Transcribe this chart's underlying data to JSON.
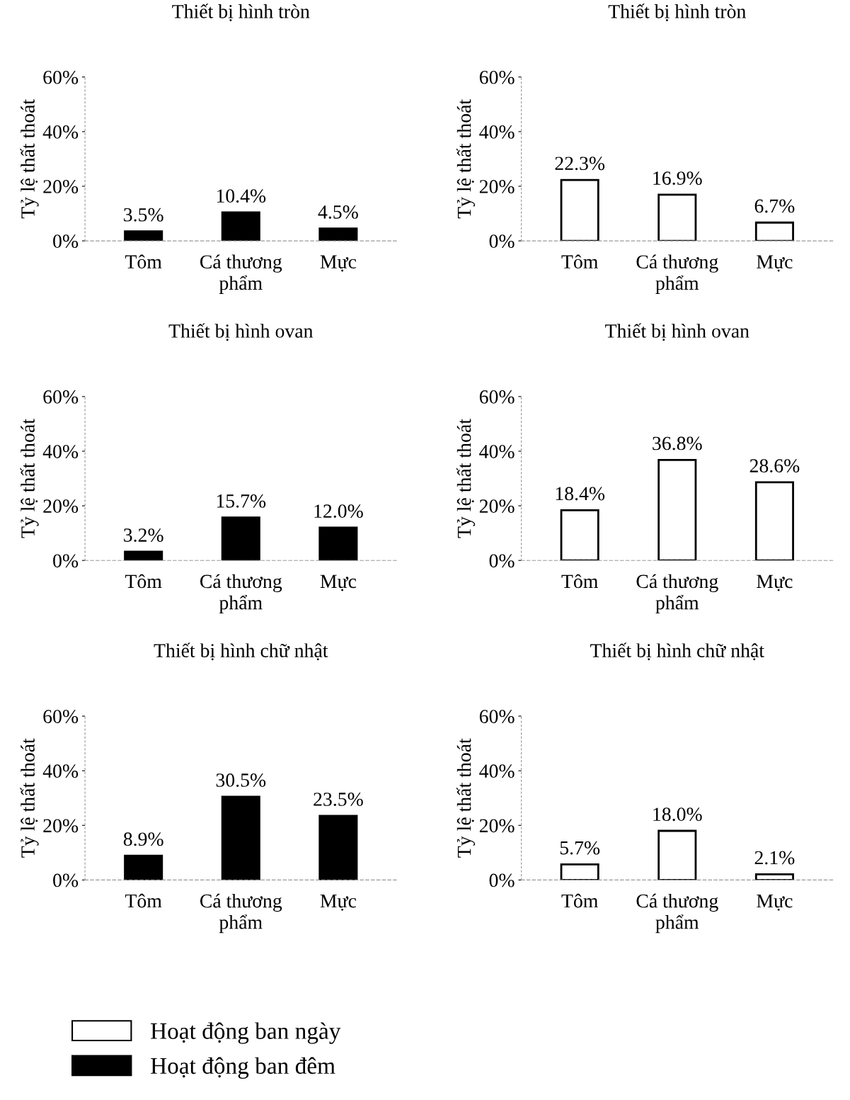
{
  "chart_data": [
    {
      "type": "bar",
      "title": "Thiết bị hình tròn",
      "ylabel": "Tỷ lệ thất thoát",
      "categories": [
        "Tôm",
        "Cá thương phẩm",
        "Mực"
      ],
      "series": [
        {
          "name": "Hoạt động ban đêm",
          "color": "#000000",
          "values": [
            3.5,
            10.4,
            4.5
          ],
          "value_labels": [
            "3.5%",
            "10.4%",
            "4.5%"
          ]
        }
      ],
      "ylim": [
        0,
        60
      ],
      "yticks": [
        {
          "value": 0,
          "label": "0%"
        },
        {
          "value": 20,
          "label": "20%"
        },
        {
          "value": 40,
          "label": "40%"
        },
        {
          "value": 60,
          "label": "60%"
        }
      ],
      "legend": "bottom"
    },
    {
      "type": "bar",
      "title": "Thiết bị hình tròn",
      "ylabel": "Tỷ lệ thất thoát",
      "categories": [
        "Tôm",
        "Cá thương phẩm",
        "Mực"
      ],
      "series": [
        {
          "name": "Hoạt động ban ngày",
          "color": "#ffffff",
          "values": [
            22.3,
            16.9,
            6.7
          ],
          "value_labels": [
            "22.3%",
            "16.9%",
            "6.7%"
          ]
        }
      ],
      "ylim": [
        0,
        60
      ],
      "yticks": [
        {
          "value": 0,
          "label": "0%"
        },
        {
          "value": 20,
          "label": "20%"
        },
        {
          "value": 40,
          "label": "40%"
        },
        {
          "value": 60,
          "label": "60%"
        }
      ],
      "legend": "bottom"
    },
    {
      "type": "bar",
      "title": "Thiết bị hình ovan",
      "ylabel": "Tỷ lệ thất thoát",
      "categories": [
        "Tôm",
        "Cá thương phẩm",
        "Mực"
      ],
      "series": [
        {
          "color": "#000000",
          "values": [
            3.2,
            15.7,
            12.0
          ],
          "value_labels": [
            "3.2%",
            "15.7%",
            "12.0%"
          ]
        }
      ],
      "ylim": [
        0,
        60
      ],
      "yticks": [
        {
          "value": 0,
          "label": "0%"
        },
        {
          "value": 20,
          "label": "20%"
        },
        {
          "value": 40,
          "label": "40%"
        },
        {
          "value": 60,
          "label": "60%"
        }
      ]
    },
    {
      "type": "bar",
      "title": "Thiết bị hình ovan",
      "ylabel": "Tỷ lệ thất thoát",
      "categories": [
        "Tôm",
        "Cá thương phẩm",
        "Mực"
      ],
      "series": [
        {
          "color": "#ffffff",
          "values": [
            18.4,
            36.8,
            28.6
          ],
          "value_labels": [
            "18.4%",
            "36.8%",
            "28.6%"
          ]
        }
      ],
      "ylim": [
        0,
        60
      ],
      "yticks": [
        {
          "value": 0,
          "label": "0%"
        },
        {
          "value": 20,
          "label": "20%"
        },
        {
          "value": 40,
          "label": "40%"
        },
        {
          "value": 60,
          "label": "60%"
        }
      ]
    },
    {
      "type": "bar",
      "title": "Thiết bị hình chữ nhật",
      "ylabel": "Tỷ lệ thất thoát",
      "categories": [
        "Tôm",
        "Cá thương phẩm",
        "Mực"
      ],
      "series": [
        {
          "color": "#000000",
          "values": [
            8.9,
            30.5,
            23.5
          ],
          "value_labels": [
            "8.9%",
            "30.5%",
            "23.5%"
          ]
        }
      ],
      "ylim": [
        0,
        60
      ],
      "yticks": [
        {
          "value": 0,
          "label": "0%"
        },
        {
          "value": 20,
          "label": "20%"
        },
        {
          "value": 40,
          "label": "40%"
        },
        {
          "value": 60,
          "label": "60%"
        }
      ]
    },
    {
      "type": "bar",
      "title": "Thiết bị hình chữ nhật",
      "ylabel": "Tỷ lệ thất thoát",
      "categories": [
        "Tôm",
        "Cá thương phẩm",
        "Mực"
      ],
      "series": [
        {
          "color": "#ffffff",
          "values": [
            5.7,
            18.0,
            2.1
          ],
          "value_labels": [
            "5.7%",
            "18.0%",
            "2.1%"
          ]
        }
      ],
      "ylim": [
        0,
        60
      ],
      "yticks": [
        {
          "value": 0,
          "label": "0%"
        },
        {
          "value": 20,
          "label": "20%"
        },
        {
          "value": 40,
          "label": "40%"
        },
        {
          "value": 60,
          "label": "60%"
        }
      ]
    }
  ]
}
